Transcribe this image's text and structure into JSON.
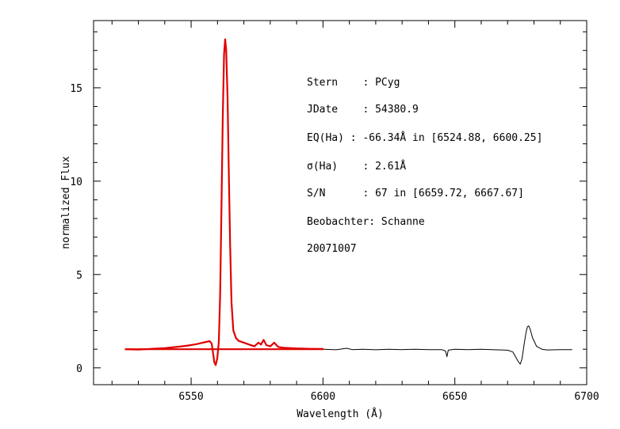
{
  "chart_data": {
    "type": "line",
    "xlabel": "Wavelength (Å)",
    "ylabel": "normalized Flux",
    "xlim": [
      6513,
      6700
    ],
    "ylim": [
      -0.9,
      18.6
    ],
    "xticks": [
      6550,
      6600,
      6650,
      6700
    ],
    "yticks": [
      0,
      5,
      10,
      15
    ],
    "grid": false,
    "series": [
      {
        "color": "#e00000",
        "style": "thick",
        "points": [
          [
            6524.9,
            1.0
          ],
          [
            6530,
            0.98
          ],
          [
            6535,
            1.02
          ],
          [
            6540,
            1.06
          ],
          [
            6545,
            1.13
          ],
          [
            6549,
            1.2
          ],
          [
            6552,
            1.27
          ],
          [
            6555,
            1.37
          ],
          [
            6557,
            1.43
          ],
          [
            6557.8,
            1.3
          ],
          [
            6558.3,
            0.8
          ],
          [
            6558.8,
            0.3
          ],
          [
            6559.3,
            0.15
          ],
          [
            6559.9,
            0.5
          ],
          [
            6560.5,
            1.4
          ],
          [
            6561.0,
            4.0
          ],
          [
            6561.5,
            8.5
          ],
          [
            6562.0,
            13.5
          ],
          [
            6562.5,
            16.8
          ],
          [
            6562.9,
            17.6
          ],
          [
            6563.3,
            17.0
          ],
          [
            6563.8,
            14.5
          ],
          [
            6564.3,
            10.5
          ],
          [
            6564.8,
            6.5
          ],
          [
            6565.3,
            3.5
          ],
          [
            6566.0,
            2.0
          ],
          [
            6567,
            1.6
          ],
          [
            6568,
            1.45
          ],
          [
            6570,
            1.35
          ],
          [
            6572,
            1.25
          ],
          [
            6574,
            1.15
          ],
          [
            6575.5,
            1.35
          ],
          [
            6576.5,
            1.25
          ],
          [
            6577.5,
            1.5
          ],
          [
            6578.5,
            1.22
          ],
          [
            6580,
            1.15
          ],
          [
            6581.5,
            1.35
          ],
          [
            6583,
            1.12
          ],
          [
            6585,
            1.08
          ],
          [
            6590,
            1.04
          ],
          [
            6595,
            1.02
          ],
          [
            6600.2,
            1.01
          ]
        ]
      },
      {
        "color": "#e00000",
        "style": "thick",
        "points": [
          [
            6524.9,
            1.0
          ],
          [
            6600.2,
            1.0
          ]
        ]
      },
      {
        "color": "#000000",
        "style": "thin",
        "points": [
          [
            6600.2,
            1.0
          ],
          [
            6605,
            0.97
          ],
          [
            6609,
            1.05
          ],
          [
            6611,
            0.98
          ],
          [
            6615,
            1.0
          ],
          [
            6620,
            0.97
          ],
          [
            6625,
            1.0
          ],
          [
            6630,
            0.98
          ],
          [
            6635,
            1.0
          ],
          [
            6640,
            0.98
          ],
          [
            6645,
            0.98
          ],
          [
            6646.5,
            0.9
          ],
          [
            6647.0,
            0.6
          ],
          [
            6647.5,
            0.95
          ],
          [
            6650,
            1.0
          ],
          [
            6655,
            0.98
          ],
          [
            6660,
            1.0
          ],
          [
            6665,
            0.97
          ],
          [
            6670,
            0.95
          ],
          [
            6672,
            0.85
          ],
          [
            6673,
            0.6
          ],
          [
            6674,
            0.35
          ],
          [
            6674.8,
            0.2
          ],
          [
            6675.5,
            0.5
          ],
          [
            6676.3,
            1.3
          ],
          [
            6677,
            1.9
          ],
          [
            6677.5,
            2.2
          ],
          [
            6678,
            2.25
          ],
          [
            6678.5,
            2.1
          ],
          [
            6679.5,
            1.6
          ],
          [
            6681,
            1.15
          ],
          [
            6683,
            1.0
          ],
          [
            6685,
            0.96
          ],
          [
            6690,
            0.98
          ],
          [
            6694.5,
            0.98
          ]
        ]
      }
    ],
    "annotations": [
      "Stern    : PCyg",
      "JDate    : 54380.9",
      "EQ(Ha) : -66.34Å in [6524.88, 6600.25]",
      "σ(Ha)    : 2.61Å",
      "S/N      : 67 in [6659.72, 6667.67]",
      "Beobachter: Schanne",
      "20071007"
    ]
  }
}
